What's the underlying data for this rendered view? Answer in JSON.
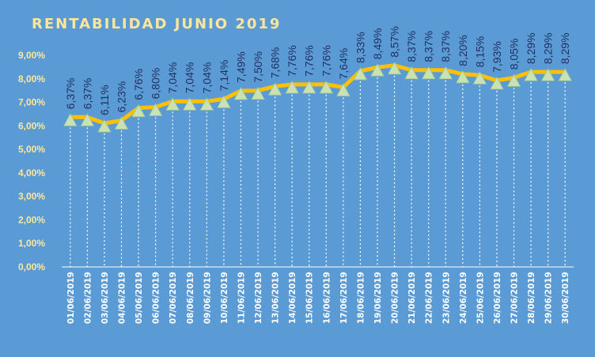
{
  "chart_data": {
    "type": "line",
    "title": "RENTABILIDAD JUNIO 2019",
    "xlabel": "",
    "ylabel": "",
    "ylim": [
      0,
      9
    ],
    "ytick_step": 1,
    "ytick_labels": [
      "0,00%",
      "1,00%",
      "2,00%",
      "3,00%",
      "4,00%",
      "5,00%",
      "6,00%",
      "7,00%",
      "8,00%",
      "9,00%"
    ],
    "categories": [
      "01/06/2019",
      "02/06/2019",
      "03/06/2019",
      "04/06/2019",
      "05/06/2019",
      "06/06/2019",
      "07/06/2019",
      "08/06/2019",
      "09/06/2019",
      "10/06/2019",
      "11/06/2019",
      "12/06/2019",
      "13/06/2019",
      "14/06/2019",
      "15/06/2019",
      "16/06/2019",
      "17/06/2019",
      "18/06/2019",
      "19/06/2019",
      "20/06/2019",
      "21/06/2019",
      "22/06/2019",
      "23/06/2019",
      "24/06/2019",
      "25/06/2019",
      "26/06/2019",
      "27/06/2019",
      "28/06/2019",
      "29/06/2019",
      "30/06/2019"
    ],
    "series": [
      {
        "values": [
          6.37,
          6.37,
          6.11,
          6.23,
          6.76,
          6.8,
          7.04,
          7.04,
          7.04,
          7.14,
          7.49,
          7.5,
          7.68,
          7.76,
          7.76,
          7.76,
          7.64,
          8.33,
          8.49,
          8.57,
          8.37,
          8.37,
          8.37,
          8.2,
          8.15,
          7.93,
          8.05,
          8.29,
          8.29,
          8.29
        ],
        "labels": [
          "6,37%",
          "6,37%",
          "6,11%",
          "6,23%",
          "6,76%",
          "6,80%",
          "7,04%",
          "7,04%",
          "7,04%",
          "7,14%",
          "7,49%",
          "7,50%",
          "7,68%",
          "7,76%",
          "7,76%",
          "7,76%",
          "7,64%",
          "8,33%",
          "8,49%",
          "8,57%",
          "8,37%",
          "8,37%",
          "8,37%",
          "8,20%",
          "8,15%",
          "7,93%",
          "8,05%",
          "8,29%",
          "8,29%",
          "8,29%"
        ]
      }
    ],
    "grid": false,
    "drop_lines": true,
    "marker": "triangle",
    "colors": {
      "background": "#5b9bd5",
      "line": "#ffc000",
      "marker": "#c9e2b3",
      "title": "#ffe699",
      "ytick": "#ffe699",
      "xtick": "#ffffff",
      "data_label": "#1f2f5f",
      "drop_line": "#ffffff"
    }
  }
}
